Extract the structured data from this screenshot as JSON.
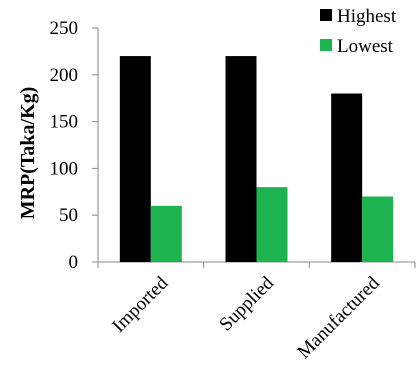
{
  "chart_data": {
    "type": "bar",
    "categories": [
      "Imported",
      "Supplied",
      "Manufactured"
    ],
    "series": [
      {
        "name": "Highest",
        "values": [
          220,
          220,
          180
        ],
        "color": "#000000"
      },
      {
        "name": "Lowest",
        "values": [
          60,
          80,
          70
        ],
        "color": "#1db34f"
      }
    ],
    "ylabel": "MRP(Taka/Kg)",
    "xlabel": "",
    "ylim": [
      0,
      250
    ],
    "yticks": [
      0,
      50,
      100,
      150,
      200,
      250
    ],
    "grid": false,
    "legend_position": "top-right"
  }
}
